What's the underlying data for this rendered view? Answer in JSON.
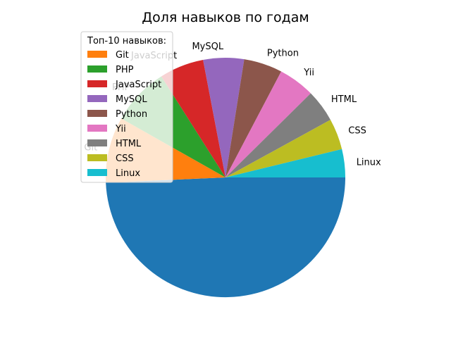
{
  "chart_data": {
    "type": "pie",
    "title": "Доля навыков по годам",
    "start_angle_deg": 0,
    "direction": "clockwise",
    "legend": {
      "title": "Топ-10 навыков:",
      "placement": "upper-left",
      "entries": [
        "Git",
        "PHP",
        "JavaScript",
        "MySQL",
        "Python",
        "Yii",
        "HTML",
        "CSS",
        "Linux"
      ]
    },
    "slices": [
      {
        "label": "",
        "value": 49.3,
        "color": "#1f77b4"
      },
      {
        "label": "Git",
        "value": 8.9,
        "color": "#ff7f0e"
      },
      {
        "label": "PHP",
        "value": 7.8,
        "color": "#2ca02c"
      },
      {
        "label": "JavaScript",
        "value": 6.0,
        "color": "#d62728"
      },
      {
        "label": "MySQL",
        "value": 5.5,
        "color": "#9467bd"
      },
      {
        "label": "Python",
        "value": 5.2,
        "color": "#8c564b"
      },
      {
        "label": "Yii",
        "value": 4.9,
        "color": "#e377c2"
      },
      {
        "label": "HTML",
        "value": 4.4,
        "color": "#7f7f7f"
      },
      {
        "label": "CSS",
        "value": 4.2,
        "color": "#bcbd22"
      },
      {
        "label": "Linux",
        "value": 3.8,
        "color": "#17becf"
      }
    ]
  }
}
